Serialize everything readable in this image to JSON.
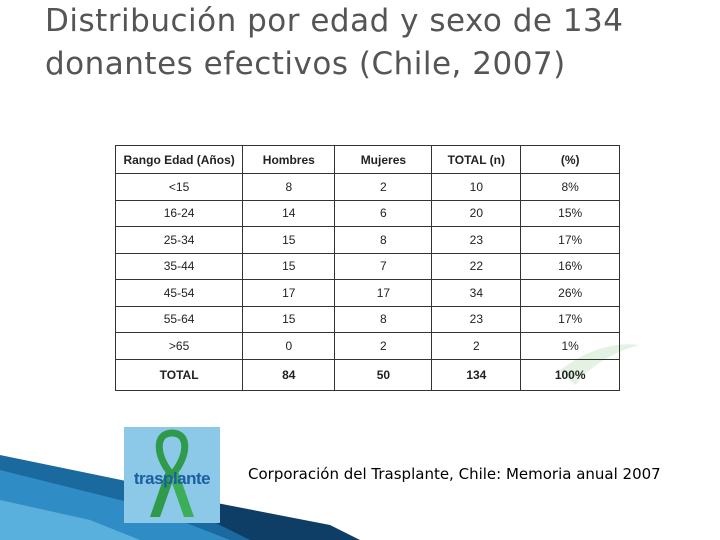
{
  "header": {
    "title": "Distribución por edad y sexo de 134 donantes efectivos (Chile, 2007)"
  },
  "table": {
    "columns": [
      "Rango Edad (Años)",
      "Hombres",
      "Mujeres",
      "TOTAL (n)",
      "(%)"
    ],
    "rows": [
      [
        "<15",
        "8",
        "2",
        "10",
        "8%"
      ],
      [
        "16-24",
        "14",
        "6",
        "20",
        "15%"
      ],
      [
        "25-34",
        "15",
        "8",
        "23",
        "17%"
      ],
      [
        "35-44",
        "15",
        "7",
        "22",
        "16%"
      ],
      [
        "45-54",
        "17",
        "17",
        "34",
        "26%"
      ],
      [
        "55-64",
        "15",
        "8",
        "23",
        "17%"
      ],
      [
        ">65",
        "0",
        "2",
        "2",
        "1%"
      ],
      [
        "TOTAL",
        "84",
        "50",
        "134",
        "100%"
      ]
    ]
  },
  "logo": {
    "text": "trasplante"
  },
  "source": "Corporación del Trasplante, Chile: Memoria anual 2007"
}
